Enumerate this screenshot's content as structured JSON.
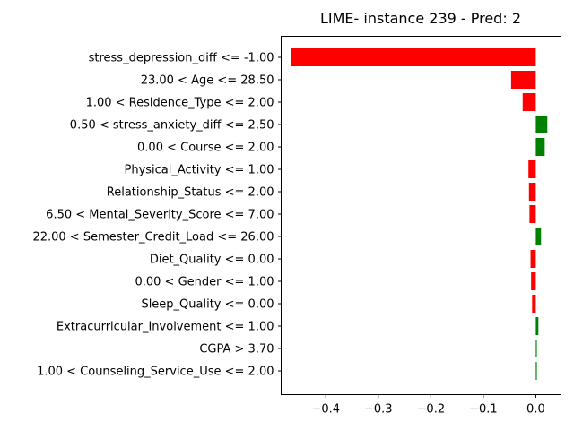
{
  "chart_data": {
    "type": "bar",
    "orientation": "horizontal",
    "title": "LIME- instance 239 - Pred: 2",
    "xlabel": "",
    "ylabel": "",
    "xlim": [
      -0.485,
      0.048
    ],
    "xticks": [
      -0.4,
      -0.3,
      -0.2,
      -0.1,
      0.0
    ],
    "xtick_labels": [
      "−0.4",
      "−0.3",
      "−0.2",
      "−0.1",
      "0.0"
    ],
    "grid": false,
    "legend": "none",
    "positive_color": "#008000",
    "negative_color": "#ff0000",
    "categories": [
      "stress_depression_diff <= -1.00",
      "23.00 < Age <= 28.50",
      "1.00 < Residence_Type <= 2.00",
      "0.50 < stress_anxiety_diff <= 2.50",
      "0.00 < Course <= 2.00",
      "Physical_Activity <= 1.00",
      "Relationship_Status <= 2.00",
      "6.50 < Mental_Severity_Score <= 7.00",
      "22.00 < Semester_Credit_Load <= 26.00",
      "Diet_Quality <= 0.00",
      "0.00 < Gender <= 1.00",
      "Sleep_Quality <= 0.00",
      "Extracurricular_Involvement <= 1.00",
      "CGPA > 3.70",
      "1.00 < Counseling_Service_Use <= 2.00"
    ],
    "values": [
      -0.467,
      -0.047,
      -0.025,
      0.022,
      0.017,
      -0.014,
      -0.013,
      -0.012,
      0.01,
      -0.01,
      -0.009,
      -0.007,
      0.005,
      0.002,
      0.002
    ]
  }
}
